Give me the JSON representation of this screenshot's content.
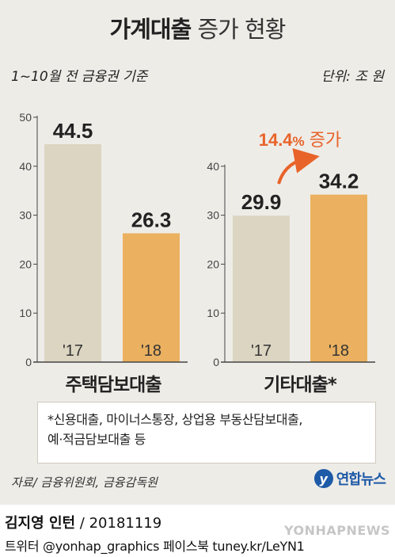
{
  "header": {
    "title_bold": "가계대출",
    "title_light": "증가 현황",
    "note_left": "1~10월 전 금융권 기준",
    "note_right": "단위: 조 원"
  },
  "chart_data": [
    {
      "type": "bar",
      "title": "주택담보대출",
      "categories": [
        "'17",
        "'18"
      ],
      "values": [
        44.5,
        26.3
      ],
      "value_labels": [
        "44.5",
        "26.3"
      ],
      "ylim": [
        0,
        50
      ],
      "yticks": [
        "0",
        "10",
        "20",
        "30",
        "40",
        "50"
      ],
      "bar_colors": [
        "#dcd5c2",
        "#ebb160"
      ]
    },
    {
      "type": "bar",
      "title": "기타대출*",
      "categories": [
        "'17",
        "'18"
      ],
      "values": [
        29.9,
        34.2
      ],
      "value_labels": [
        "29.9",
        "34.2"
      ],
      "ylim": [
        0,
        40
      ],
      "yticks": [
        "0",
        "10",
        "20",
        "30",
        "40"
      ],
      "bar_colors": [
        "#dcd5c2",
        "#ebb160"
      ],
      "annotation": {
        "value": "14.4",
        "unit": "%",
        "text": "증가",
        "color": "#e8632a"
      }
    }
  ],
  "footnote": {
    "line1": "*신용대출, 마이너스통장, 상업용 부동산담보대출,",
    "line2": "예·적금담보대출 등"
  },
  "source": "자료/ 금융위원회, 금융감독원",
  "logo": {
    "mark": "y",
    "text": "연합뉴스",
    "color": "#1d5aa7"
  },
  "credit": {
    "name": "김지영 인턴",
    "date": " / 20181119"
  },
  "social": "트위터 @yonhap_graphics  페이스북 tuney.kr/LeYN1",
  "watermark": "YONHAPNEWS"
}
